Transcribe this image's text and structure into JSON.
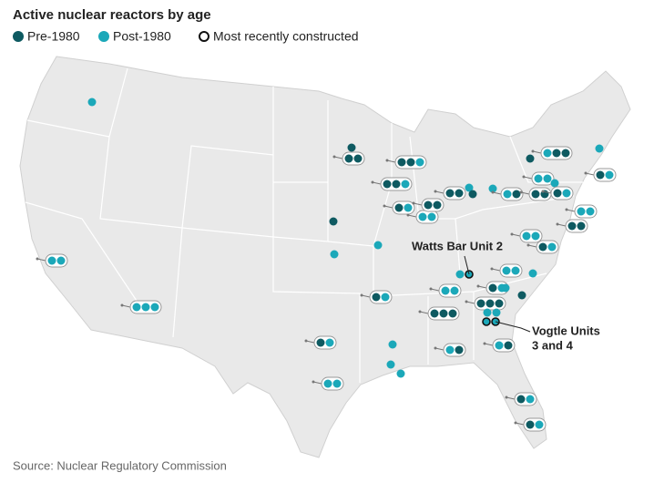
{
  "title": "Active nuclear reactors by age",
  "legend": [
    {
      "label": "Pre-1980",
      "color": "#0e5a61"
    },
    {
      "label": "Post-1980",
      "color": "#1ba8b9"
    },
    {
      "label": "Most recently constructed"
    }
  ],
  "annotations": {
    "watts_bar": "Watts Bar Unit 2",
    "vogtle": [
      "Vogtle Units",
      "3 and 4"
    ]
  },
  "source": "Source: Nuclear Regulatory Commission"
}
